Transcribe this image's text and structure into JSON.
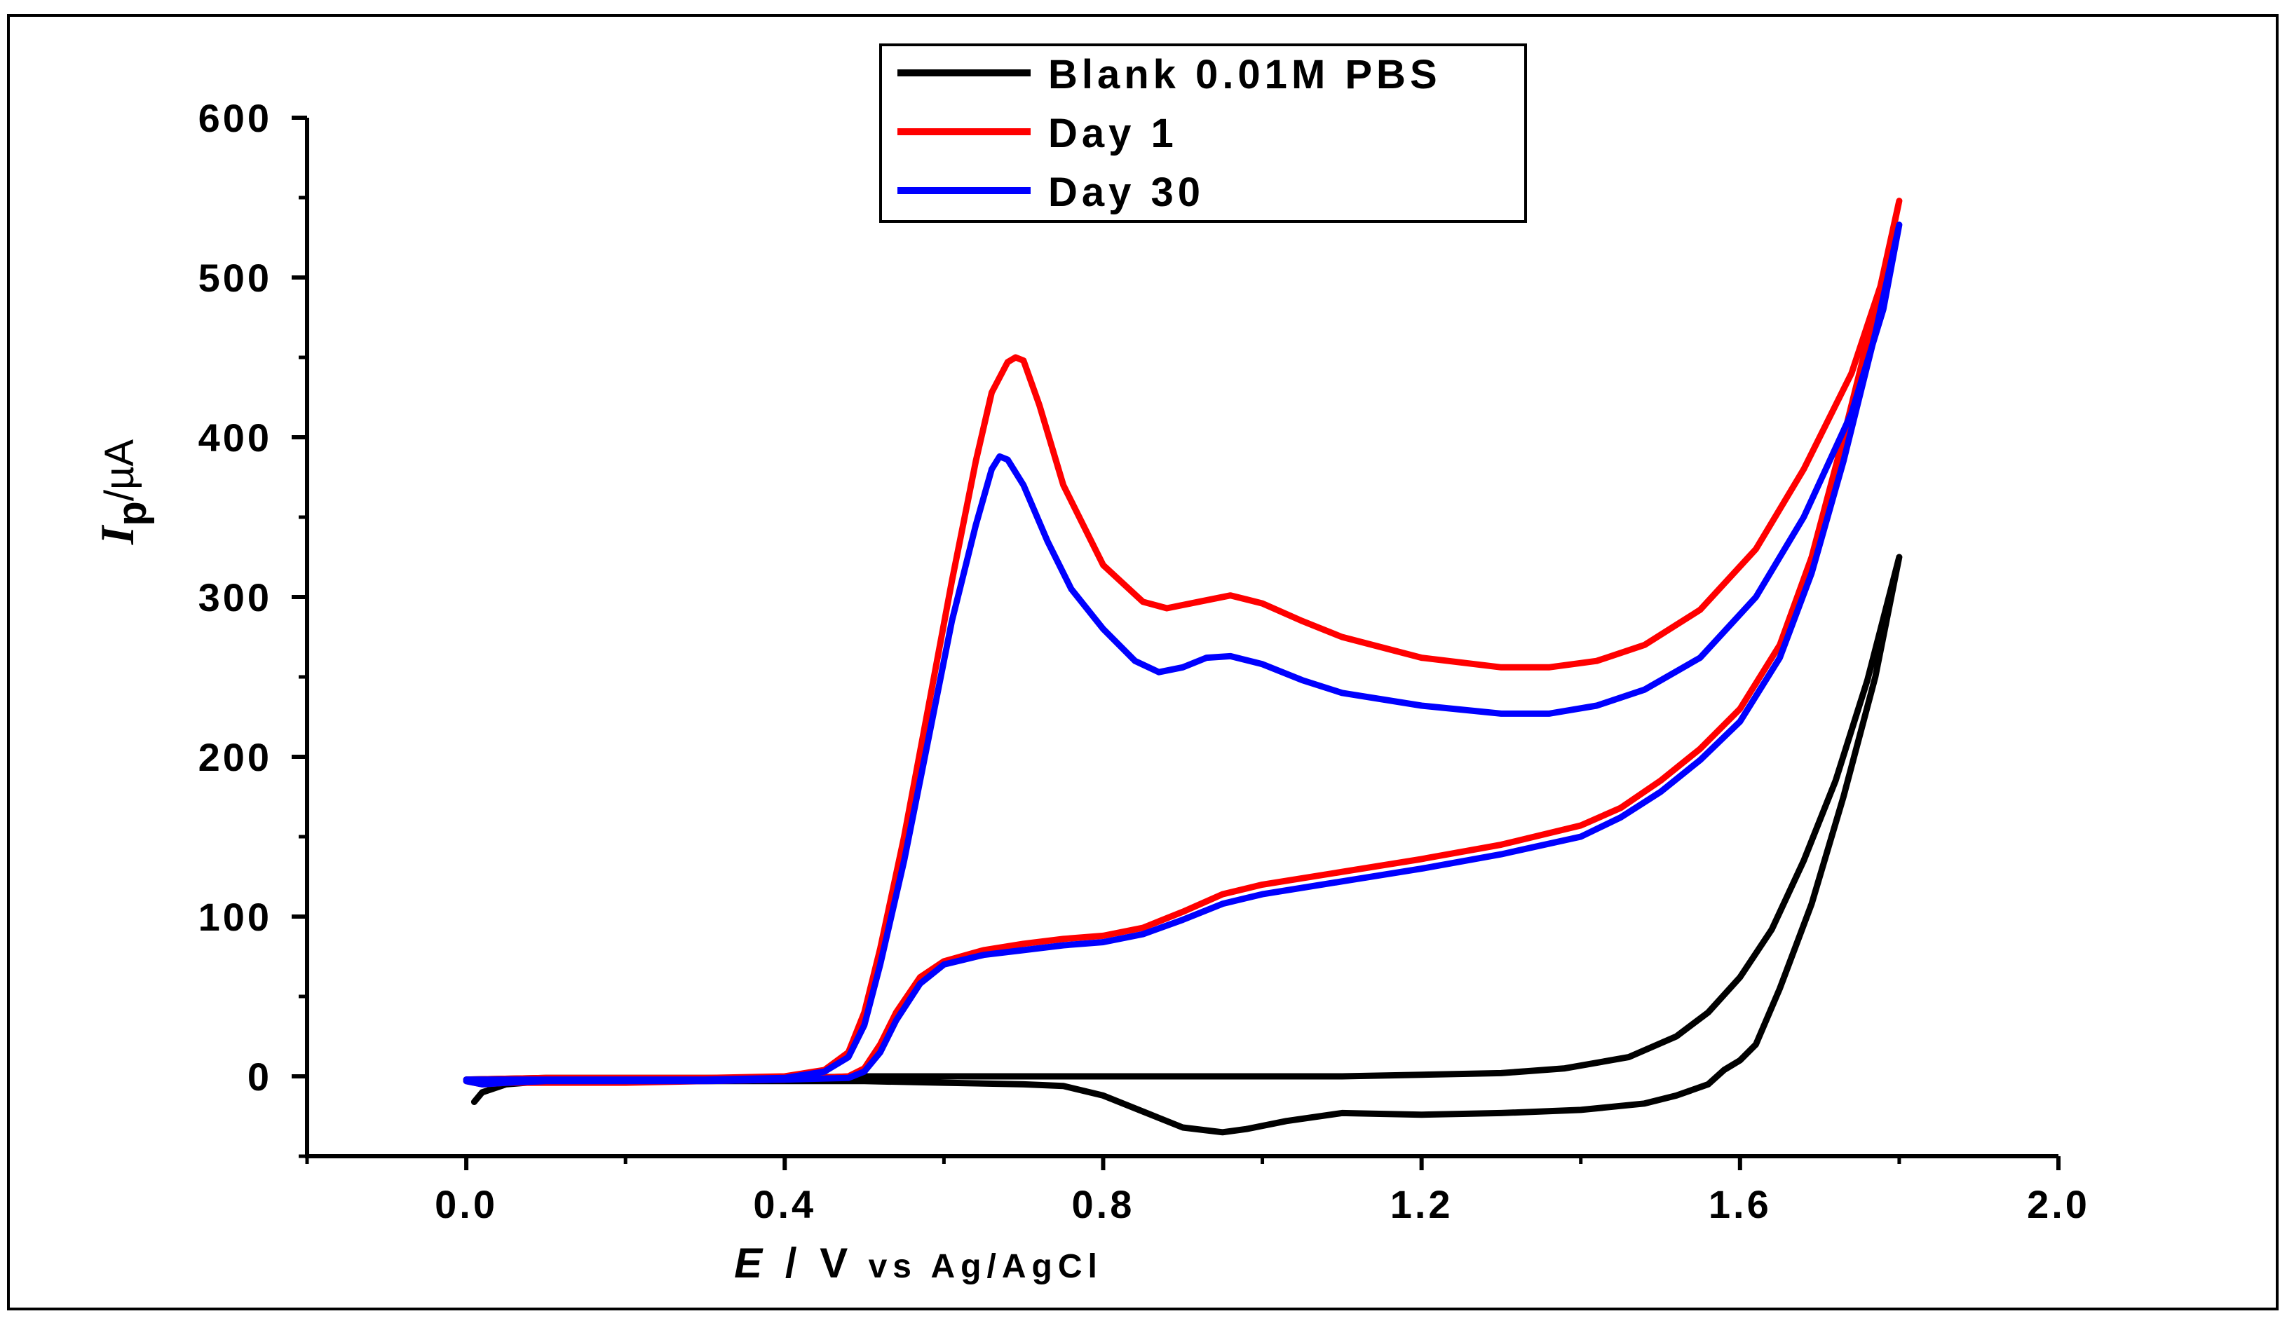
{
  "chart_data": {
    "type": "line",
    "title": "",
    "xlabel": {
      "symbol": "E",
      "separator": " / V",
      "reference": " vs Ag/AgCl"
    },
    "ylabel": {
      "symbol": "I",
      "subscript": "p",
      "unit": "/µA"
    },
    "xlim": [
      -0.2,
      2.0
    ],
    "ylim": [
      -50,
      600
    ],
    "x_major_ticks": [
      0.0,
      0.4,
      0.8,
      1.2,
      1.6,
      2.0
    ],
    "x_tick_labels": [
      "0.0",
      "0.4",
      "0.8",
      "1.2",
      "1.6",
      "2.0"
    ],
    "x_minor_ticks": [
      -0.2,
      0.2,
      0.6,
      1.0,
      1.4,
      1.8
    ],
    "y_major_ticks": [
      0,
      100,
      200,
      300,
      400,
      500,
      600
    ],
    "y_tick_labels": [
      "0",
      "100",
      "200",
      "300",
      "400",
      "500",
      "600"
    ],
    "y_minor_ticks": [
      -50,
      50,
      150,
      250,
      350,
      450,
      550
    ],
    "grid": false,
    "legend_position": "top-center",
    "series": [
      {
        "name": "Blank 0.01M PBS",
        "color": "#000000",
        "points": [
          [
            0.0,
            -2
          ],
          [
            0.1,
            -1
          ],
          [
            0.2,
            -1
          ],
          [
            0.3,
            -1
          ],
          [
            0.4,
            -1
          ],
          [
            0.5,
            0
          ],
          [
            0.6,
            0
          ],
          [
            0.7,
            0
          ],
          [
            0.8,
            0
          ],
          [
            0.9,
            0
          ],
          [
            1.0,
            0
          ],
          [
            1.1,
            0
          ],
          [
            1.2,
            1
          ],
          [
            1.3,
            2
          ],
          [
            1.38,
            5
          ],
          [
            1.46,
            12
          ],
          [
            1.52,
            25
          ],
          [
            1.56,
            40
          ],
          [
            1.6,
            62
          ],
          [
            1.64,
            92
          ],
          [
            1.68,
            135
          ],
          [
            1.72,
            185
          ],
          [
            1.76,
            248
          ],
          [
            1.8,
            325
          ],
          [
            1.77,
            250
          ],
          [
            1.73,
            175
          ],
          [
            1.69,
            108
          ],
          [
            1.65,
            55
          ],
          [
            1.62,
            20
          ],
          [
            1.6,
            10
          ],
          [
            1.58,
            4
          ],
          [
            1.56,
            -5
          ],
          [
            1.52,
            -12
          ],
          [
            1.48,
            -17
          ],
          [
            1.4,
            -21
          ],
          [
            1.3,
            -23
          ],
          [
            1.2,
            -24
          ],
          [
            1.1,
            -23
          ],
          [
            1.03,
            -28
          ],
          [
            0.98,
            -33
          ],
          [
            0.95,
            -35
          ],
          [
            0.9,
            -32
          ],
          [
            0.85,
            -22
          ],
          [
            0.8,
            -12
          ],
          [
            0.75,
            -6
          ],
          [
            0.7,
            -5
          ],
          [
            0.6,
            -4
          ],
          [
            0.5,
            -3
          ],
          [
            0.4,
            -3
          ],
          [
            0.3,
            -3
          ],
          [
            0.2,
            -3
          ],
          [
            0.1,
            -3
          ],
          [
            0.05,
            -5
          ],
          [
            0.02,
            -10
          ],
          [
            0.01,
            -16
          ]
        ]
      },
      {
        "name": "Day 1",
        "color": "#ff0000",
        "points": [
          [
            0.0,
            -2
          ],
          [
            0.1,
            -1
          ],
          [
            0.2,
            -1
          ],
          [
            0.3,
            -1
          ],
          [
            0.4,
            0
          ],
          [
            0.45,
            4
          ],
          [
            0.48,
            15
          ],
          [
            0.5,
            40
          ],
          [
            0.52,
            80
          ],
          [
            0.55,
            150
          ],
          [
            0.58,
            230
          ],
          [
            0.61,
            310
          ],
          [
            0.64,
            385
          ],
          [
            0.66,
            428
          ],
          [
            0.68,
            447
          ],
          [
            0.69,
            450
          ],
          [
            0.7,
            448
          ],
          [
            0.72,
            420
          ],
          [
            0.75,
            370
          ],
          [
            0.8,
            320
          ],
          [
            0.85,
            297
          ],
          [
            0.88,
            293
          ],
          [
            0.92,
            297
          ],
          [
            0.96,
            301
          ],
          [
            1.0,
            296
          ],
          [
            1.05,
            285
          ],
          [
            1.1,
            275
          ],
          [
            1.2,
            262
          ],
          [
            1.3,
            256
          ],
          [
            1.36,
            256
          ],
          [
            1.42,
            260
          ],
          [
            1.48,
            270
          ],
          [
            1.55,
            292
          ],
          [
            1.62,
            330
          ],
          [
            1.68,
            380
          ],
          [
            1.74,
            440
          ],
          [
            1.78,
            500
          ],
          [
            1.8,
            548
          ],
          [
            1.77,
            480
          ],
          [
            1.73,
            400
          ],
          [
            1.69,
            325
          ],
          [
            1.65,
            270
          ],
          [
            1.6,
            230
          ],
          [
            1.55,
            205
          ],
          [
            1.5,
            185
          ],
          [
            1.45,
            168
          ],
          [
            1.4,
            157
          ],
          [
            1.3,
            145
          ],
          [
            1.2,
            136
          ],
          [
            1.1,
            128
          ],
          [
            1.0,
            120
          ],
          [
            0.95,
            114
          ],
          [
            0.9,
            103
          ],
          [
            0.85,
            93
          ],
          [
            0.8,
            88
          ],
          [
            0.75,
            86
          ],
          [
            0.7,
            83
          ],
          [
            0.65,
            79
          ],
          [
            0.6,
            72
          ],
          [
            0.57,
            62
          ],
          [
            0.54,
            40
          ],
          [
            0.52,
            20
          ],
          [
            0.5,
            5
          ],
          [
            0.48,
            0
          ],
          [
            0.4,
            -2
          ],
          [
            0.3,
            -3
          ],
          [
            0.2,
            -4
          ],
          [
            0.1,
            -4
          ],
          [
            0.05,
            -4
          ],
          [
            0.02,
            -5
          ],
          [
            0.0,
            -3
          ]
        ]
      },
      {
        "name": "Day 30",
        "color": "#0000ff",
        "points": [
          [
            0.0,
            -2
          ],
          [
            0.1,
            -2
          ],
          [
            0.2,
            -2
          ],
          [
            0.3,
            -2
          ],
          [
            0.4,
            -1
          ],
          [
            0.45,
            3
          ],
          [
            0.48,
            12
          ],
          [
            0.5,
            32
          ],
          [
            0.52,
            70
          ],
          [
            0.55,
            135
          ],
          [
            0.58,
            210
          ],
          [
            0.61,
            285
          ],
          [
            0.64,
            345
          ],
          [
            0.66,
            380
          ],
          [
            0.67,
            388
          ],
          [
            0.68,
            386
          ],
          [
            0.7,
            370
          ],
          [
            0.73,
            335
          ],
          [
            0.76,
            305
          ],
          [
            0.8,
            280
          ],
          [
            0.84,
            260
          ],
          [
            0.87,
            253
          ],
          [
            0.9,
            256
          ],
          [
            0.93,
            262
          ],
          [
            0.96,
            263
          ],
          [
            1.0,
            258
          ],
          [
            1.05,
            248
          ],
          [
            1.1,
            240
          ],
          [
            1.2,
            232
          ],
          [
            1.3,
            227
          ],
          [
            1.36,
            227
          ],
          [
            1.42,
            232
          ],
          [
            1.48,
            242
          ],
          [
            1.55,
            262
          ],
          [
            1.62,
            300
          ],
          [
            1.68,
            350
          ],
          [
            1.74,
            415
          ],
          [
            1.78,
            480
          ],
          [
            1.8,
            533
          ],
          [
            1.77,
            465
          ],
          [
            1.73,
            385
          ],
          [
            1.69,
            315
          ],
          [
            1.65,
            262
          ],
          [
            1.6,
            222
          ],
          [
            1.55,
            198
          ],
          [
            1.5,
            178
          ],
          [
            1.45,
            162
          ],
          [
            1.4,
            150
          ],
          [
            1.3,
            139
          ],
          [
            1.2,
            130
          ],
          [
            1.1,
            122
          ],
          [
            1.0,
            114
          ],
          [
            0.95,
            108
          ],
          [
            0.9,
            98
          ],
          [
            0.85,
            89
          ],
          [
            0.8,
            84
          ],
          [
            0.75,
            82
          ],
          [
            0.7,
            79
          ],
          [
            0.65,
            76
          ],
          [
            0.6,
            70
          ],
          [
            0.57,
            58
          ],
          [
            0.54,
            35
          ],
          [
            0.52,
            15
          ],
          [
            0.5,
            3
          ],
          [
            0.48,
            -1
          ],
          [
            0.4,
            -2
          ],
          [
            0.3,
            -3
          ],
          [
            0.2,
            -3
          ],
          [
            0.1,
            -3
          ],
          [
            0.05,
            -4
          ],
          [
            0.02,
            -5
          ],
          [
            0.0,
            -3
          ]
        ]
      }
    ]
  }
}
